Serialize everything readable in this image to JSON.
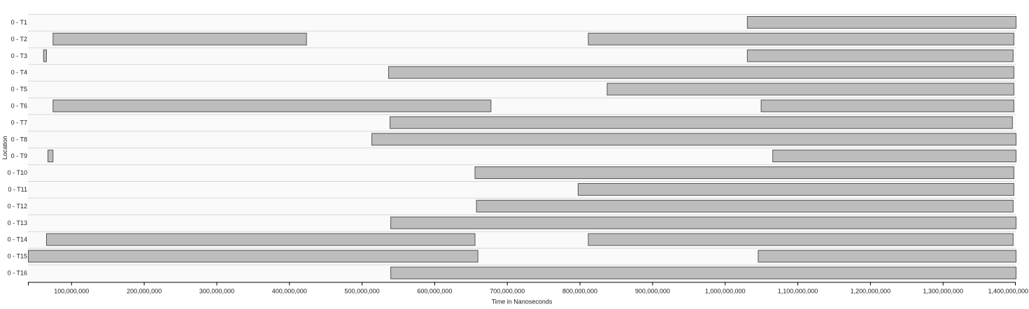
{
  "colors": {
    "background": "#ffffff",
    "plot_background": "#fafafa",
    "row_divider": "#d7d7d7",
    "bar_fill": "#bdbdbd",
    "bar_stroke": "#555555",
    "axis": "#000000"
  },
  "chart_data": {
    "type": "bar",
    "orientation": "horizontal-gantt",
    "title": "",
    "xlabel": "Time in Nanoseconds",
    "ylabel": "Location",
    "xlim": [
      40000000,
      1400000000
    ],
    "xticks": [
      100000000,
      200000000,
      300000000,
      400000000,
      500000000,
      600000000,
      700000000,
      800000000,
      900000000,
      1000000000,
      1100000000,
      1200000000,
      1300000000,
      1400000000
    ],
    "xtick_labels": [
      "100,000,000",
      "200,000,000",
      "300,000,000",
      "400,000,000",
      "500,000,000",
      "600,000,000",
      "700,000,000",
      "800,000,000",
      "900,000,000",
      "1,000,000,000",
      "1,100,000,000",
      "1,200,000,000",
      "1,300,000,000",
      "1,400,000,000"
    ],
    "grid": false,
    "rows": [
      {
        "label": "0 - T1",
        "segments": [
          [
            1030000000,
            1400000000
          ]
        ]
      },
      {
        "label": "0 - T2",
        "segments": [
          [
            74000000,
            423000000
          ],
          [
            811000000,
            1397000000
          ]
        ]
      },
      {
        "label": "0 - T3",
        "segments": [
          [
            61000000,
            65000000
          ],
          [
            1030000000,
            1396000000
          ]
        ]
      },
      {
        "label": "0 - T4",
        "segments": [
          [
            536000000,
            1397000000
          ]
        ]
      },
      {
        "label": "0 - T5",
        "segments": [
          [
            837000000,
            1397000000
          ]
        ]
      },
      {
        "label": "0 - T6",
        "segments": [
          [
            74000000,
            677000000
          ],
          [
            1049000000,
            1397000000
          ]
        ]
      },
      {
        "label": "0 - T7",
        "segments": [
          [
            538000000,
            1395000000
          ]
        ]
      },
      {
        "label": "0 - T8",
        "segments": [
          [
            513000000,
            1400000000
          ]
        ]
      },
      {
        "label": "0 - T9",
        "segments": [
          [
            67000000,
            74000000
          ],
          [
            1065000000,
            1400000000
          ]
        ]
      },
      {
        "label": "0 - T10",
        "segments": [
          [
            655000000,
            1397000000
          ]
        ]
      },
      {
        "label": "0 - T11",
        "segments": [
          [
            797000000,
            1397000000
          ]
        ]
      },
      {
        "label": "0 - T12",
        "segments": [
          [
            657000000,
            1396000000
          ]
        ]
      },
      {
        "label": "0 - T13",
        "segments": [
          [
            539000000,
            1400000000
          ]
        ]
      },
      {
        "label": "0 - T14",
        "segments": [
          [
            65000000,
            655000000
          ],
          [
            811000000,
            1396000000
          ]
        ]
      },
      {
        "label": "0 - T15",
        "segments": [
          [
            40000000,
            659000000
          ],
          [
            1045000000,
            1400000000
          ]
        ]
      },
      {
        "label": "0 - T16",
        "segments": [
          [
            539000000,
            1400000000
          ]
        ]
      }
    ]
  }
}
